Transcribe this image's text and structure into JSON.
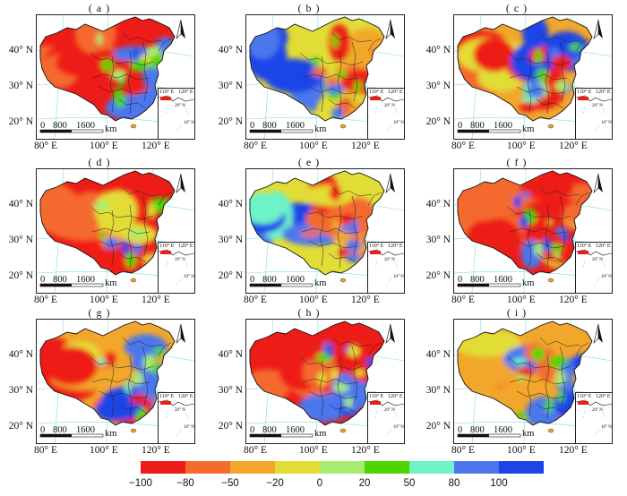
{
  "panels": [
    {
      "label": "( a )",
      "regime": "warm",
      "seed": 11
    },
    {
      "label": "( b )",
      "regime": "cool",
      "seed": 23
    },
    {
      "label": "( c )",
      "regime": "mixed",
      "seed": 37
    },
    {
      "label": "( d )",
      "regime": "warm",
      "seed": 41
    },
    {
      "label": "( e )",
      "regime": "cool",
      "seed": 53
    },
    {
      "label": "( f )",
      "regime": "warm",
      "seed": 67
    },
    {
      "label": "( g )",
      "regime": "mixed",
      "seed": 71
    },
    {
      "label": "( h )",
      "regime": "warm",
      "seed": 83
    },
    {
      "label": "( i )",
      "regime": "mixed",
      "seed": 97
    }
  ],
  "axes": {
    "lat_labels": [
      "40° N",
      "30° N",
      "20° N"
    ],
    "lon_labels": [
      "80° E",
      "100° E",
      "120° E"
    ],
    "scale": {
      "zero": "0",
      "mid": "800",
      "end": "1600",
      "unit": "km"
    },
    "inset": {
      "lon_left": "110° E",
      "lon_right": "120° E",
      "lat_top": "20° N",
      "lat_bottom": "10° N"
    }
  },
  "legend": {
    "ticks": [
      "−100",
      "−80",
      "−50",
      "−20",
      "0",
      "20",
      "50",
      "80",
      "100"
    ],
    "colors": [
      "#ee1c18",
      "#f46b2e",
      "#f2a72c",
      "#e2dd36",
      "#a6ec6e",
      "#4fd400",
      "#6cf3c7",
      "#4b76ed",
      "#1c44e8"
    ]
  }
}
